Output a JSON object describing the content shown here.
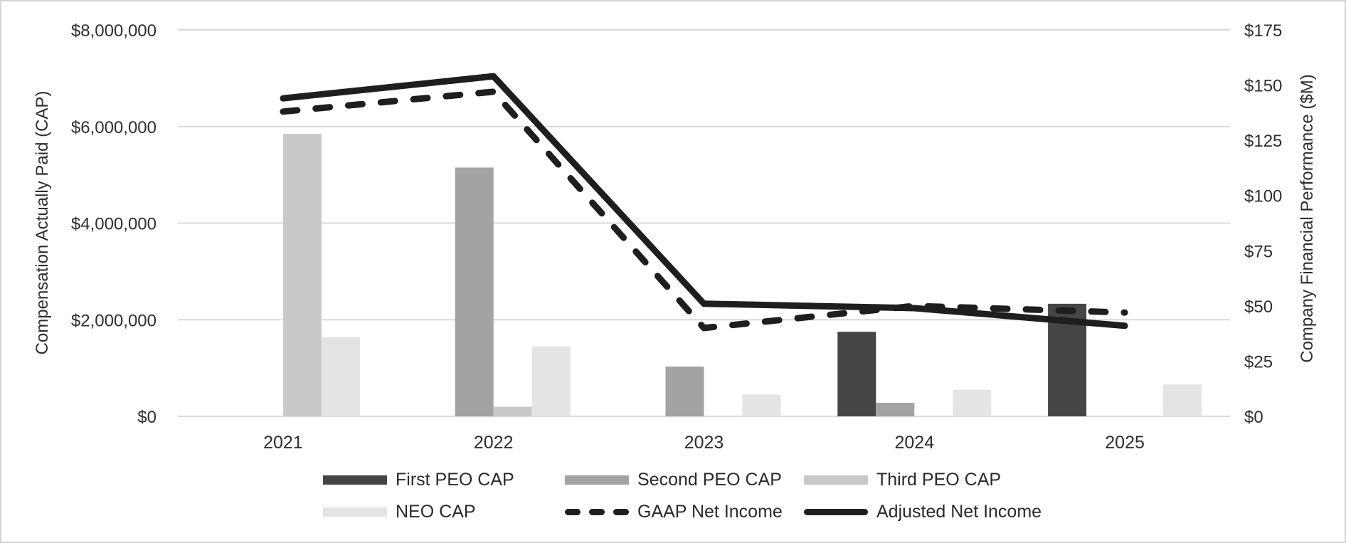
{
  "chart_data": {
    "type": "combo_bar_line",
    "title": "",
    "categories": [
      "2021",
      "2022",
      "2023",
      "2024",
      "2025"
    ],
    "left_axis": {
      "label": "Compensation Actually Paid (CAP)",
      "min": 0,
      "max": 8000000,
      "tick_step": 2000000,
      "ticks": [
        {
          "value": 0,
          "label": "$0"
        },
        {
          "value": 2000000,
          "label": "$2,000,000"
        },
        {
          "value": 4000000,
          "label": "$4,000,000"
        },
        {
          "value": 6000000,
          "label": "$6,000,000"
        },
        {
          "value": 8000000,
          "label": "$8,000,000"
        }
      ]
    },
    "right_axis": {
      "label": "Company Financial Performance ($M)",
      "min": 0,
      "max": 175,
      "tick_step": 25,
      "ticks": [
        {
          "value": 0,
          "label": "$0"
        },
        {
          "value": 25,
          "label": "$25"
        },
        {
          "value": 50,
          "label": "$50"
        },
        {
          "value": 75,
          "label": "$75"
        },
        {
          "value": 100,
          "label": "$100"
        },
        {
          "value": 125,
          "label": "$125"
        },
        {
          "value": 150,
          "label": "$150"
        },
        {
          "value": 175,
          "label": "$175"
        }
      ]
    },
    "bar_series": [
      {
        "name": "First PEO CAP",
        "color": "#454545",
        "axis": "left",
        "values": [
          null,
          null,
          null,
          1750000,
          2330000
        ]
      },
      {
        "name": "Second PEO CAP",
        "color": "#a3a3a3",
        "axis": "left",
        "values": [
          null,
          5150000,
          1030000,
          280000,
          null
        ]
      },
      {
        "name": "Third PEO CAP",
        "color": "#c9c9c9",
        "axis": "left",
        "values": [
          5850000,
          200000,
          null,
          null,
          null
        ]
      },
      {
        "name": "NEO CAP",
        "color": "#e4e4e4",
        "axis": "left",
        "values": [
          1640000,
          1450000,
          450000,
          550000,
          660000
        ]
      }
    ],
    "line_series": [
      {
        "name": "GAAP Net Income",
        "color": "#1e1e1e",
        "style": "dashed",
        "axis": "right",
        "values": [
          138,
          147,
          40,
          50,
          47
        ]
      },
      {
        "name": "Adjusted Net Income",
        "color": "#1e1e1e",
        "style": "solid",
        "axis": "right",
        "values": [
          144,
          154,
          51,
          49,
          41
        ]
      }
    ],
    "gridlines": true,
    "grid_color": "#d9d9d9",
    "legend_position": "bottom"
  }
}
